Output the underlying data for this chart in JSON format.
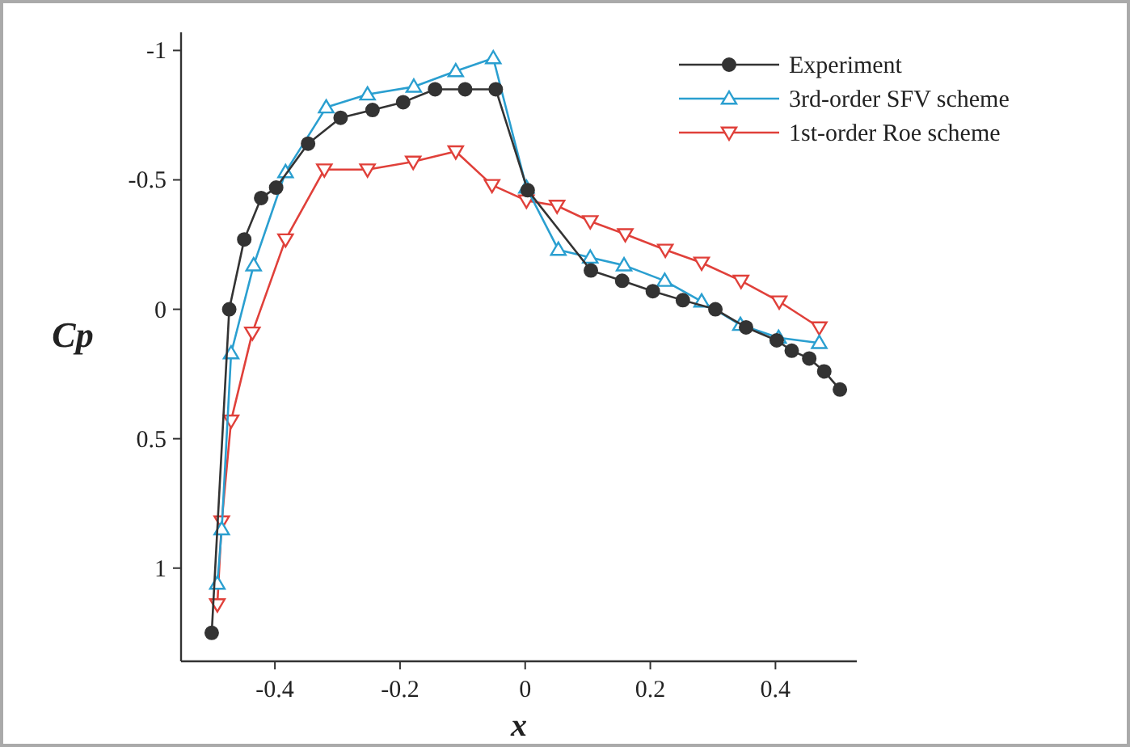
{
  "chart_data": {
    "type": "line",
    "xlabel": "x",
    "ylabel": "Cp",
    "xlim": [
      -0.55,
      0.53
    ],
    "ylim": [
      1.36,
      -1.07
    ],
    "xticks": [
      -0.4,
      -0.2,
      0,
      0.2,
      0.4
    ],
    "yticks": [
      1,
      0.5,
      0,
      -0.5,
      -1
    ],
    "legend": "top right",
    "grid": false,
    "series": [
      {
        "name": "Experiment",
        "color": "#333333",
        "marker": "circle",
        "x": [
          -0.501,
          -0.473,
          -0.449,
          -0.422,
          -0.398,
          -0.347,
          -0.295,
          -0.244,
          -0.195,
          -0.144,
          -0.096,
          -0.047,
          0.004,
          0.105,
          0.155,
          0.204,
          0.252,
          0.304,
          0.353,
          0.402,
          0.426,
          0.454,
          0.478,
          0.503
        ],
        "values": [
          1.25,
          0.0,
          -0.27,
          -0.43,
          -0.47,
          -0.64,
          -0.74,
          -0.77,
          -0.8,
          -0.85,
          -0.85,
          -0.85,
          -0.46,
          -0.15,
          -0.11,
          -0.07,
          -0.035,
          0.0,
          0.07,
          0.12,
          0.16,
          0.19,
          0.24,
          0.31
        ]
      },
      {
        "name": "3rd-order SFV scheme",
        "color": "#2a9fd0",
        "marker": "triangle",
        "x": [
          -0.492,
          -0.485,
          -0.47,
          -0.434,
          -0.383,
          -0.318,
          -0.252,
          -0.178,
          -0.111,
          -0.051,
          0.002,
          0.053,
          0.104,
          0.158,
          0.223,
          0.282,
          0.344,
          0.405,
          0.47
        ],
        "values": [
          1.06,
          0.85,
          0.17,
          -0.17,
          -0.53,
          -0.78,
          -0.83,
          -0.86,
          -0.92,
          -0.97,
          -0.47,
          -0.23,
          -0.2,
          -0.17,
          -0.11,
          -0.03,
          0.06,
          0.11,
          0.13
        ]
      },
      {
        "name": "1st-order Roe scheme",
        "color": "#e0403a",
        "marker": "triangle-down",
        "x": [
          -0.492,
          -0.485,
          -0.47,
          -0.436,
          -0.383,
          -0.321,
          -0.252,
          -0.179,
          -0.111,
          -0.053,
          0.002,
          0.051,
          0.104,
          0.16,
          0.224,
          0.282,
          0.345,
          0.406,
          0.47
        ],
        "values": [
          1.14,
          0.82,
          0.43,
          0.09,
          -0.27,
          -0.54,
          -0.54,
          -0.57,
          -0.61,
          -0.48,
          -0.42,
          -0.4,
          -0.34,
          -0.29,
          -0.23,
          -0.18,
          -0.11,
          -0.03,
          0.07
        ]
      }
    ]
  }
}
